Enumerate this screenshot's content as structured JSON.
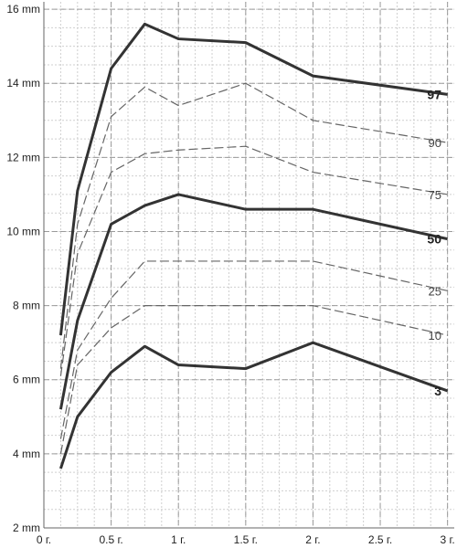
{
  "chart_data": {
    "type": "line",
    "x_ticks": [
      {
        "value": 0,
        "label": "0 г."
      },
      {
        "value": 0.5,
        "label": "0.5 г."
      },
      {
        "value": 1,
        "label": "1 г."
      },
      {
        "value": 1.5,
        "label": "1.5 г."
      },
      {
        "value": 2,
        "label": "2 г."
      },
      {
        "value": 2.5,
        "label": "2.5 г."
      },
      {
        "value": 3,
        "label": "3 г."
      }
    ],
    "y_ticks": [
      {
        "value": 2,
        "label": "2 mm"
      },
      {
        "value": 4,
        "label": "4 mm"
      },
      {
        "value": 6,
        "label": "6 mm"
      },
      {
        "value": 8,
        "label": "8 mm"
      },
      {
        "value": 10,
        "label": "10 mm"
      },
      {
        "value": 12,
        "label": "12 mm"
      },
      {
        "value": 14,
        "label": "14 mm"
      },
      {
        "value": 16,
        "label": "16 mm"
      }
    ],
    "xlim": [
      0,
      3.05
    ],
    "ylim": [
      2,
      16.2
    ],
    "grid": true,
    "x": [
      0.125,
      0.25,
      0.5,
      0.75,
      1,
      1.5,
      2,
      3
    ],
    "series": [
      {
        "name": "97",
        "style": "bold",
        "values": [
          7.2,
          11.1,
          14.4,
          15.6,
          15.2,
          15.1,
          14.2,
          13.7
        ]
      },
      {
        "name": "90",
        "style": "dash",
        "values": [
          6.3,
          10.2,
          13.1,
          13.9,
          13.4,
          14.0,
          13.0,
          12.4
        ]
      },
      {
        "name": "75",
        "style": "dash",
        "values": [
          6.1,
          9.4,
          11.6,
          12.1,
          12.2,
          12.3,
          11.6,
          11.0
        ]
      },
      {
        "name": "50",
        "style": "bold",
        "values": [
          5.2,
          7.6,
          10.2,
          10.7,
          11.0,
          10.6,
          10.6,
          9.8
        ]
      },
      {
        "name": "25",
        "style": "dash",
        "values": [
          4.4,
          6.8,
          8.2,
          9.2,
          9.2,
          9.2,
          9.2,
          8.4
        ]
      },
      {
        "name": "10",
        "style": "dash",
        "values": [
          4.0,
          6.4,
          7.4,
          8.0,
          8.0,
          8.0,
          8.0,
          7.2
        ]
      },
      {
        "name": "3",
        "style": "bold",
        "values": [
          3.6,
          5.0,
          6.2,
          6.9,
          6.4,
          6.3,
          7.0,
          5.7
        ]
      }
    ],
    "colors": {
      "bold": "#333333",
      "dash": "#666666",
      "grid_major": "#9a9a9a",
      "grid_minor": "#cfcfcf",
      "axis": "#666666"
    }
  }
}
